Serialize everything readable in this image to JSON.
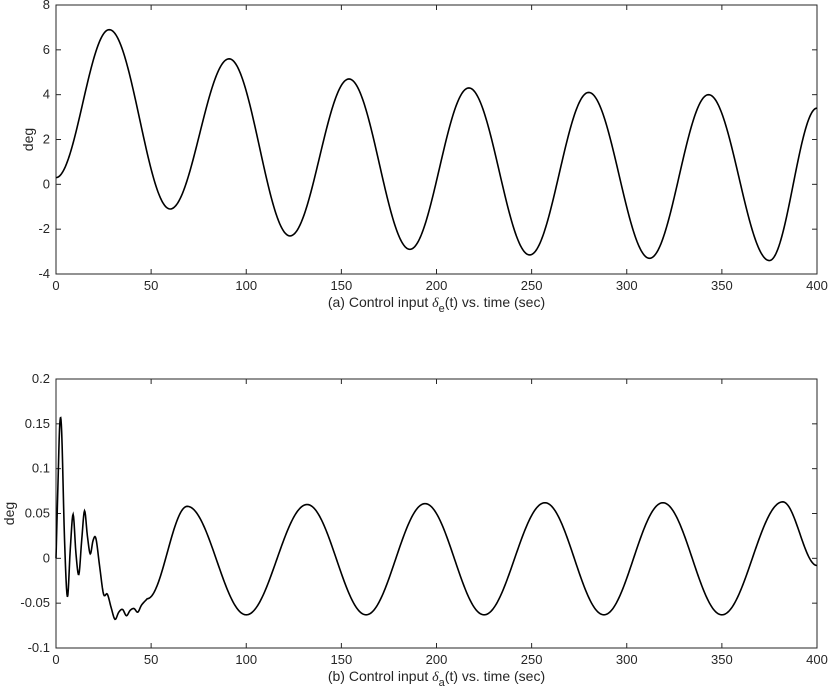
{
  "chart_data": [
    {
      "type": "line",
      "panel": "a",
      "caption": {
        "prefix": "(a) Control input ",
        "symbol": "δ",
        "subscript": "e",
        "suffix": "(t) vs. time (sec)"
      },
      "ylabel": "deg",
      "xlim": [
        0,
        400
      ],
      "ylim": [
        -4,
        8
      ],
      "xticks": [
        0,
        50,
        100,
        150,
        200,
        250,
        300,
        350,
        400
      ],
      "yticks": [
        -4,
        -2,
        0,
        2,
        4,
        6,
        8
      ],
      "grid": false,
      "color": "#000000",
      "peaks_and_troughs": [
        {
          "x": 0,
          "y": 0.3
        },
        {
          "x": 28,
          "y": 6.9
        },
        {
          "x": 60,
          "y": -1.1
        },
        {
          "x": 91,
          "y": 5.6
        },
        {
          "x": 123,
          "y": -2.3
        },
        {
          "x": 154,
          "y": 4.7
        },
        {
          "x": 186,
          "y": -2.9
        },
        {
          "x": 217,
          "y": 4.3
        },
        {
          "x": 249,
          "y": -3.15
        },
        {
          "x": 280,
          "y": 4.1
        },
        {
          "x": 312,
          "y": -3.3
        },
        {
          "x": 343,
          "y": 4.0
        },
        {
          "x": 375,
          "y": -3.4
        },
        {
          "x": 400,
          "y": 3.4
        }
      ]
    },
    {
      "type": "line",
      "panel": "b",
      "caption": {
        "prefix": "(b) Control input ",
        "symbol": "δ",
        "subscript": "a",
        "suffix": "(t) vs. time (sec)"
      },
      "ylabel": "deg",
      "xlim": [
        0,
        400
      ],
      "ylim": [
        -0.1,
        0.2
      ],
      "xticks": [
        0,
        50,
        100,
        150,
        200,
        250,
        300,
        350,
        400
      ],
      "yticks": [
        -0.1,
        -0.05,
        0,
        0.05,
        0.1,
        0.15,
        0.2
      ],
      "ytick_labels": [
        "-0.1",
        "-0.05",
        "0",
        "0.05",
        "0.1",
        "0.15",
        "0.2"
      ],
      "grid": false,
      "color": "#000000",
      "points": [
        {
          "x": 0,
          "y": 0
        },
        {
          "x": 1,
          "y": 0.08
        },
        {
          "x": 2,
          "y": 0.15
        },
        {
          "x": 3,
          "y": 0.14
        },
        {
          "x": 4.5,
          "y": 0.02
        },
        {
          "x": 6,
          "y": -0.043
        },
        {
          "x": 7.5,
          "y": 0.01
        },
        {
          "x": 9,
          "y": 0.049
        },
        {
          "x": 10.5,
          "y": 0.005
        },
        {
          "x": 12,
          "y": -0.018
        },
        {
          "x": 13.5,
          "y": 0.02
        },
        {
          "x": 15,
          "y": 0.053
        },
        {
          "x": 16.5,
          "y": 0.025
        },
        {
          "x": 18,
          "y": 0.005
        },
        {
          "x": 19.5,
          "y": 0.02
        },
        {
          "x": 21,
          "y": 0.022
        },
        {
          "x": 23,
          "y": -0.01
        },
        {
          "x": 25,
          "y": -0.04
        },
        {
          "x": 27,
          "y": -0.04
        },
        {
          "x": 29,
          "y": -0.055
        },
        {
          "x": 31,
          "y": -0.068
        },
        {
          "x": 33,
          "y": -0.06
        },
        {
          "x": 35,
          "y": -0.057
        },
        {
          "x": 37,
          "y": -0.064
        },
        {
          "x": 39,
          "y": -0.058
        },
        {
          "x": 41,
          "y": -0.056
        },
        {
          "x": 43,
          "y": -0.06
        },
        {
          "x": 45,
          "y": -0.052
        },
        {
          "x": 48,
          "y": -0.045
        }
      ],
      "steady_oscillation": {
        "x_start": 48,
        "amplitude": 0.062,
        "offset": -0.001,
        "period": 62.5,
        "first_peak_x": 69,
        "peaks": [
          {
            "x": 69,
            "y": 0.058
          },
          {
            "x": 132,
            "y": 0.06
          },
          {
            "x": 194,
            "y": 0.061
          },
          {
            "x": 257,
            "y": 0.062
          },
          {
            "x": 319,
            "y": 0.062
          },
          {
            "x": 382,
            "y": 0.063
          }
        ],
        "troughs": [
          {
            "x": 100,
            "y": -0.063
          },
          {
            "x": 163,
            "y": -0.063
          },
          {
            "x": 225,
            "y": -0.063
          },
          {
            "x": 288,
            "y": -0.063
          },
          {
            "x": 350,
            "y": -0.063
          }
        ],
        "end": {
          "x": 400,
          "y": -0.008
        }
      }
    }
  ]
}
